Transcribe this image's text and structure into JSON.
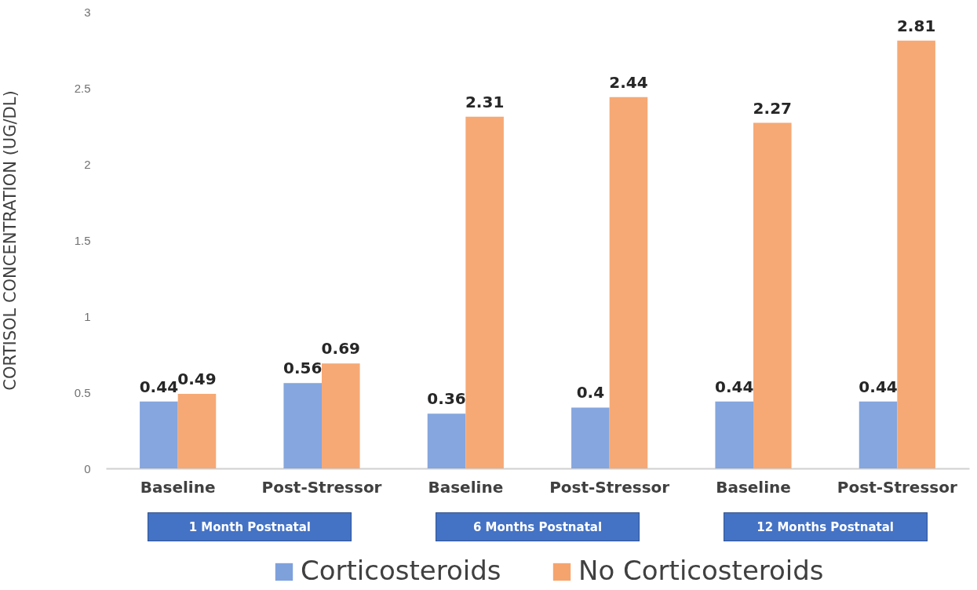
{
  "chart_data": {
    "type": "bar",
    "ylabel": "CORTISOL CONCENTRATION (UG/DL)",
    "categories": [
      "Baseline",
      "Post-Stressor",
      "Baseline",
      "Post-Stressor",
      "Baseline",
      "Post-Stressor"
    ],
    "series": [
      {
        "name": "Corticosteroids",
        "color": "#7ea1dc",
        "values": [
          0.44,
          0.56,
          0.36,
          0.4,
          0.44,
          0.44
        ]
      },
      {
        "name": "No Corticosteroids",
        "color": "#f5a46e",
        "values": [
          0.49,
          0.69,
          2.31,
          2.44,
          2.27,
          2.81
        ]
      }
    ],
    "ylim": [
      0,
      3
    ],
    "yticks": [
      0,
      0.5,
      1,
      1.5,
      2,
      2.5,
      3
    ],
    "data_labels": true,
    "grid": false,
    "legend": "bottom",
    "annotations": [
      "1 Month Postnatal",
      "6 Months Postnatal",
      "12 Months Postnatal"
    ]
  }
}
